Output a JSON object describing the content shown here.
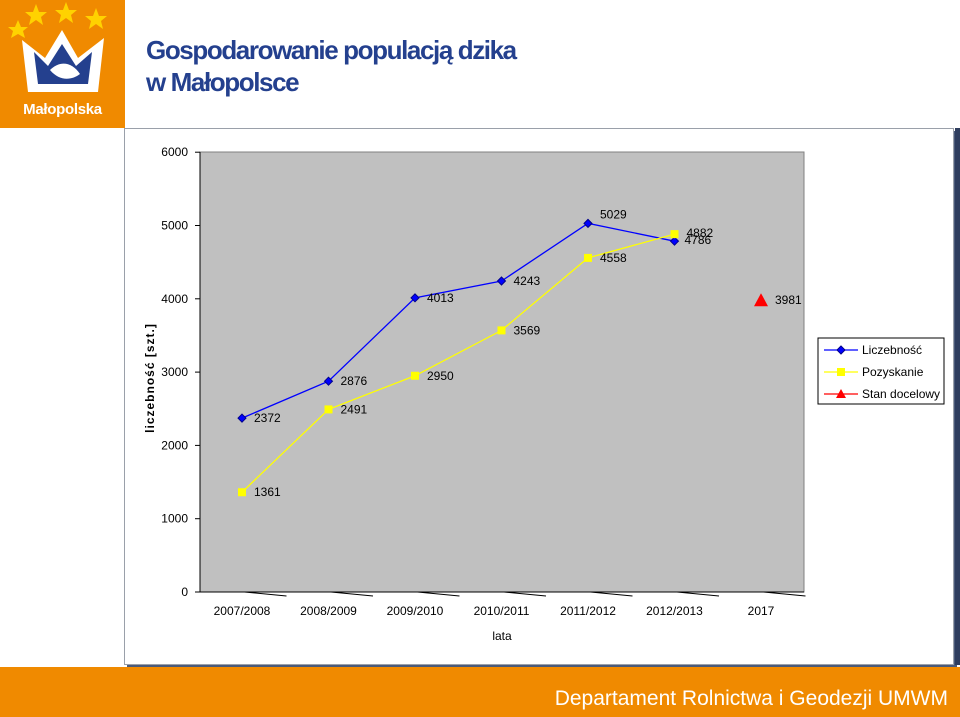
{
  "header": {
    "logo_text": "Małopolska",
    "title_line1": "Gospodarowanie populacją dzika",
    "title_line2": "w Małopolsce"
  },
  "footer": {
    "text": "Departament Rolnictwa i Geodezji UMWM"
  },
  "colors": {
    "orange": "#f08a00",
    "navy": "#24408e",
    "series_blue": "#0000ff",
    "series_yellow": "#ffff00",
    "target_red": "#ff0000",
    "plot_bg": "#c0c0c0"
  },
  "chart_data": {
    "type": "line",
    "title": "",
    "xlabel": "lata",
    "ylabel": "liczebność [szt.]",
    "ylim": [
      0,
      6000
    ],
    "yticks": [
      0,
      1000,
      2000,
      3000,
      4000,
      5000,
      6000
    ],
    "categories": [
      "2007/2008",
      "2008/2009",
      "2009/2010",
      "2010/2011",
      "2011/2012",
      "2012/2013",
      "2017"
    ],
    "grid": false,
    "legend_position": "right",
    "series": [
      {
        "name": "Liczebność",
        "marker": "diamond",
        "values": [
          2372,
          2876,
          4013,
          4243,
          5029,
          4786,
          null
        ]
      },
      {
        "name": "Pozyskanie",
        "marker": "square",
        "values": [
          1361,
          2491,
          2950,
          3569,
          4558,
          4882,
          null
        ]
      },
      {
        "name": "Stan docelowy",
        "marker": "triangle",
        "values": [
          null,
          null,
          null,
          null,
          null,
          null,
          3981
        ]
      }
    ]
  }
}
